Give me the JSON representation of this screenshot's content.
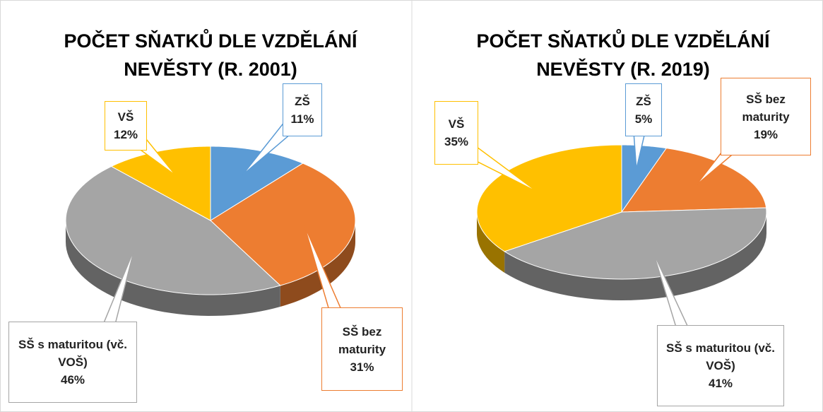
{
  "chart_data": [
    {
      "type": "pie",
      "title": "POČET SŇATKŮ DLE VZDĚLÁNÍ NEVĚSTY (R. 2001)",
      "categories": [
        "ZŠ",
        "SŠ bez maturity",
        "SŠ s maturitou (vč. VOŠ)",
        "VŠ"
      ],
      "values": [
        11,
        31,
        46,
        12
      ],
      "value_labels": [
        "11%",
        "31%",
        "46%",
        "12%"
      ],
      "colors": [
        "#5b9bd5",
        "#ed7d31",
        "#a5a5a5",
        "#ffc000"
      ]
    },
    {
      "type": "pie",
      "title": "POČET SŇATKŮ DLE VZDĚLÁNÍ NEVĚSTY (R. 2019)",
      "categories": [
        "ZŠ",
        "SŠ bez maturity",
        "SŠ s maturitou (vč. VOŠ)",
        "VŠ"
      ],
      "values": [
        5,
        19,
        41,
        35
      ],
      "value_labels": [
        "5%",
        "19%",
        "41%",
        "35%"
      ],
      "colors": [
        "#5b9bd5",
        "#ed7d31",
        "#a5a5a5",
        "#ffc000"
      ]
    }
  ]
}
